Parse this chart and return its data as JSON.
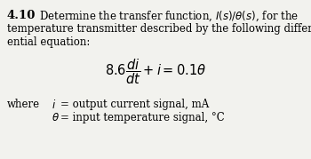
{
  "bg_color": "#f2f2ee",
  "problem_number": "4.10",
  "line1": "Determine the transfer function, $I(s)/\\theta(s)$, for the",
  "line2": "temperature transmitter described by the following differ-",
  "line3": "ential equation:",
  "equation": "$8.6\\dfrac{di}{dt} + i = 0.1\\theta$",
  "where_label": "where",
  "var1_symbol": "$i$",
  "var1_eq": "= output current signal, mA",
  "var2_symbol": "$\\theta$",
  "var2_eq": "= input temperature signal, °C",
  "font_size_body": 8.5,
  "font_size_eq": 10.5,
  "font_size_bold": 9.5
}
